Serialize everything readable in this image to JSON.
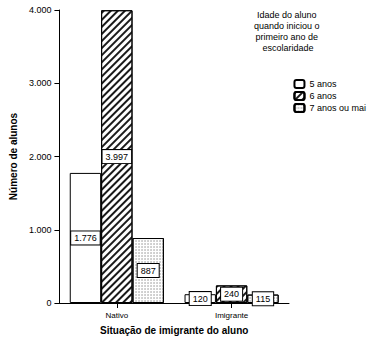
{
  "chart_data": {
    "type": "bar",
    "x_label": "Situação de imigrante do aluno",
    "y_label": "Número de alunos",
    "legend_title": "Idade do aluno quando iniciou o primeiro ano de escolaridade",
    "categories": [
      "Nativo",
      "Imigrante"
    ],
    "series": [
      {
        "name": "5 anos",
        "color": "#ffffff",
        "values": [
          1776,
          120
        ],
        "value_labels": [
          "1.776",
          "120"
        ]
      },
      {
        "name": "6 anos",
        "color": "#1a1a1a",
        "values": [
          3997,
          240
        ],
        "value_labels": [
          "3.997",
          "240"
        ]
      },
      {
        "name": "7 anos ou mai",
        "color": "#777777",
        "values": [
          887,
          115
        ],
        "value_labels": [
          "887",
          "115"
        ]
      }
    ],
    "ylim": [
      0,
      4000
    ],
    "yticks": [
      0,
      {
        "value": 1000,
        "label": "1.000"
      },
      {
        "value": 2000,
        "label": "2.000"
      },
      {
        "value": 3000,
        "label": "3.000"
      },
      {
        "value": 4000,
        "label": "4.000"
      }
    ],
    "grid": false,
    "legend": "upper right",
    "data_labels": true
  }
}
